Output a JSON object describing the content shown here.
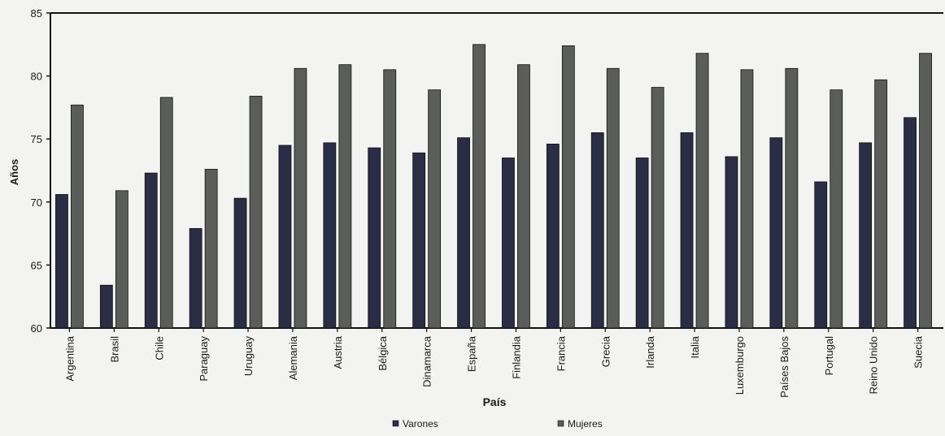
{
  "chart_data": {
    "type": "bar",
    "title": "",
    "xlabel": "País",
    "ylabel": "Años",
    "ylim": [
      60,
      85
    ],
    "yticks": [
      60,
      65,
      70,
      75,
      80,
      85
    ],
    "grid": false,
    "legend_position": "bottom-center",
    "categories": [
      "Argentina",
      "Brasil",
      "Chile",
      "Paraguay",
      "Uruguay",
      "Alemania",
      "Austria",
      "Bélgica",
      "Dinamarca",
      "España",
      "Finlandia",
      "Francia",
      "Grecia",
      "Irlanda",
      "Italia",
      "Luxemburgo",
      "Países Bajos",
      "Portugal",
      "Reino Unido",
      "Suecia"
    ],
    "series": [
      {
        "name": "Varones",
        "color": "#2a2d45",
        "values": [
          70.6,
          63.4,
          72.3,
          67.9,
          70.3,
          74.5,
          74.7,
          74.3,
          73.9,
          75.1,
          73.5,
          74.6,
          75.5,
          73.5,
          75.5,
          73.6,
          75.1,
          71.6,
          74.7,
          76.7
        ]
      },
      {
        "name": "Mujeres",
        "color": "#5b5d5b",
        "values": [
          77.7,
          70.9,
          78.3,
          72.6,
          78.4,
          80.6,
          80.9,
          80.5,
          78.9,
          82.5,
          80.9,
          82.4,
          80.6,
          79.1,
          81.8,
          80.5,
          80.6,
          78.9,
          79.7,
          81.8
        ]
      }
    ]
  }
}
